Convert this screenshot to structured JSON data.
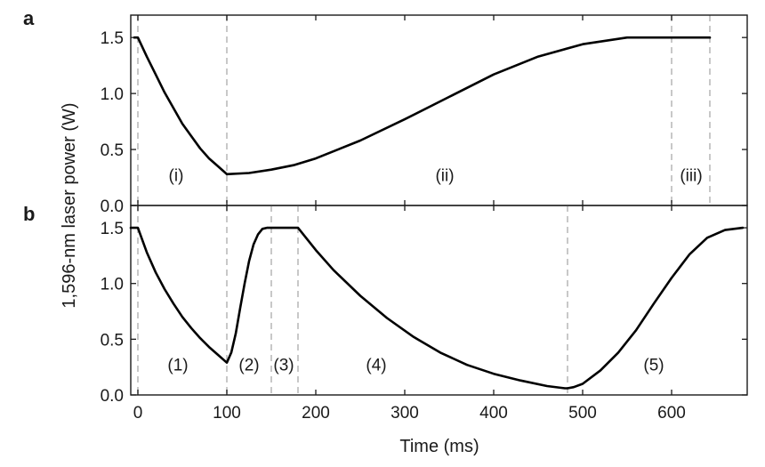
{
  "chart_data": [
    {
      "panel": "a",
      "type": "line",
      "xlabel": "Time (ms)",
      "ylabel": "1,596-nm laser power (W)",
      "xlim": [
        -8,
        685
      ],
      "ylim": [
        0,
        1.7
      ],
      "xticks": [
        0,
        100,
        200,
        300,
        400,
        500,
        600
      ],
      "yticks": [
        0.0,
        0.5,
        1.0,
        1.5
      ],
      "ytick_labels": [
        "0.0",
        "0.5",
        "1.0",
        "1.5"
      ],
      "grid": false,
      "line_color": "#000000",
      "boundary_color": "#bbbbbb",
      "boundaries": [
        0,
        100,
        600,
        643
      ],
      "regions": [
        {
          "label": "(i)",
          "x": 43,
          "y": 0.22
        },
        {
          "label": "(ii)",
          "x": 345,
          "y": 0.22
        },
        {
          "label": "(iii)",
          "x": 622,
          "y": 0.22
        }
      ],
      "series": [
        {
          "x": [
            -4,
            0,
            10,
            20,
            30,
            40,
            50,
            60,
            70,
            80,
            90,
            100,
            125,
            150,
            175,
            200,
            250,
            300,
            350,
            400,
            450,
            500,
            550,
            600,
            643
          ],
          "y": [
            1.5,
            1.5,
            1.33,
            1.17,
            1.01,
            0.87,
            0.73,
            0.62,
            0.51,
            0.42,
            0.35,
            0.28,
            0.29,
            0.32,
            0.36,
            0.42,
            0.58,
            0.77,
            0.97,
            1.17,
            1.33,
            1.44,
            1.5,
            1.5,
            1.5
          ]
        }
      ]
    },
    {
      "panel": "b",
      "type": "line",
      "xlabel": "Time (ms)",
      "ylabel": "1,596-nm laser power (W)",
      "xlim": [
        -8,
        685
      ],
      "ylim": [
        0,
        1.7
      ],
      "xticks": [
        0,
        100,
        200,
        300,
        400,
        500,
        600
      ],
      "xtick_labels": [
        "0",
        "100",
        "200",
        "300",
        "400",
        "500",
        "600"
      ],
      "yticks": [
        0.0,
        0.5,
        1.0,
        1.5
      ],
      "ytick_labels": [
        "0.0",
        "0.5",
        "1.0",
        "1.5"
      ],
      "grid": false,
      "line_color": "#000000",
      "boundary_color": "#bbbbbb",
      "boundaries": [
        0,
        100,
        150,
        180,
        483
      ],
      "regions": [
        {
          "label": "(1)",
          "x": 45,
          "y": 0.22
        },
        {
          "label": "(2)",
          "x": 125,
          "y": 0.22
        },
        {
          "label": "(3)",
          "x": 164,
          "y": 0.22
        },
        {
          "label": "(4)",
          "x": 268,
          "y": 0.22
        },
        {
          "label": "(5)",
          "x": 580,
          "y": 0.22
        }
      ],
      "series": [
        {
          "x": [
            -8,
            0,
            10,
            20,
            30,
            40,
            50,
            60,
            70,
            80,
            90,
            100,
            105,
            110,
            115,
            120,
            125,
            130,
            135,
            140,
            145,
            150,
            165,
            180,
            200,
            220,
            250,
            280,
            310,
            340,
            370,
            400,
            430,
            460,
            480,
            483,
            490,
            500,
            520,
            540,
            560,
            580,
            600,
            620,
            640,
            660,
            680
          ],
          "y": [
            1.5,
            1.5,
            1.28,
            1.1,
            0.95,
            0.82,
            0.7,
            0.6,
            0.51,
            0.43,
            0.36,
            0.29,
            0.38,
            0.55,
            0.78,
            1.0,
            1.2,
            1.35,
            1.44,
            1.49,
            1.5,
            1.5,
            1.5,
            1.5,
            1.3,
            1.12,
            0.89,
            0.69,
            0.52,
            0.38,
            0.27,
            0.19,
            0.13,
            0.08,
            0.06,
            0.06,
            0.07,
            0.1,
            0.22,
            0.38,
            0.58,
            0.82,
            1.05,
            1.26,
            1.41,
            1.48,
            1.5
          ]
        }
      ]
    }
  ]
}
